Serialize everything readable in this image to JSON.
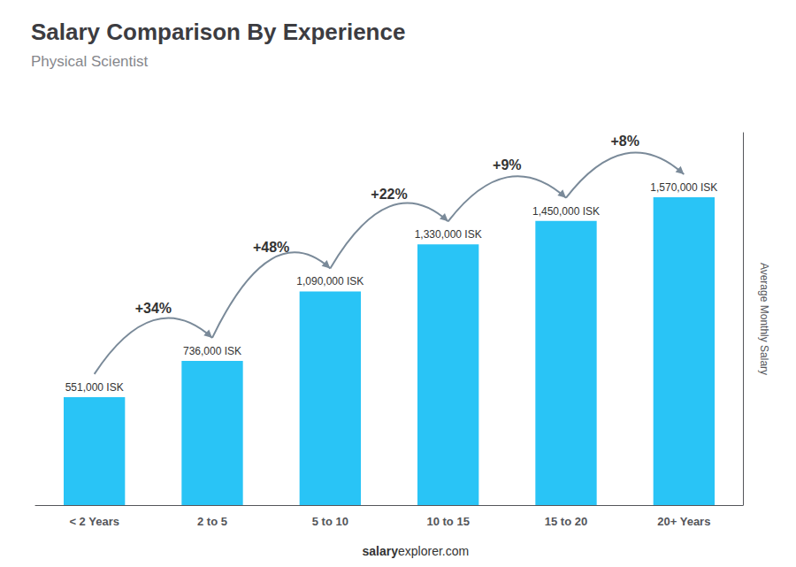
{
  "chart_data": {
    "type": "bar",
    "title": "Salary Comparison By Experience",
    "subtitle": "Physical Scientist",
    "ylabel": "Average Monthly Salary",
    "categories": [
      "< 2 Years",
      "2 to 5",
      "5 to 10",
      "10 to 15",
      "15 to 20",
      "20+ Years"
    ],
    "values": [
      551000,
      736000,
      1090000,
      1330000,
      1450000,
      1570000
    ],
    "value_labels": [
      "551,000 ISK",
      "736,000 ISK",
      "1,090,000 ISK",
      "1,330,000 ISK",
      "1,450,000 ISK",
      "1,570,000 ISK"
    ],
    "data_labels": true,
    "color": "#29c4f6",
    "ylim": [
      0,
      1900000
    ],
    "yticks": [],
    "tick_labels": "x",
    "grid": false,
    "annotations": [
      "+34%",
      "+48%",
      "+22%",
      "+9%",
      "+8%"
    ],
    "footer": [
      "salary",
      "explorer.com"
    ]
  }
}
